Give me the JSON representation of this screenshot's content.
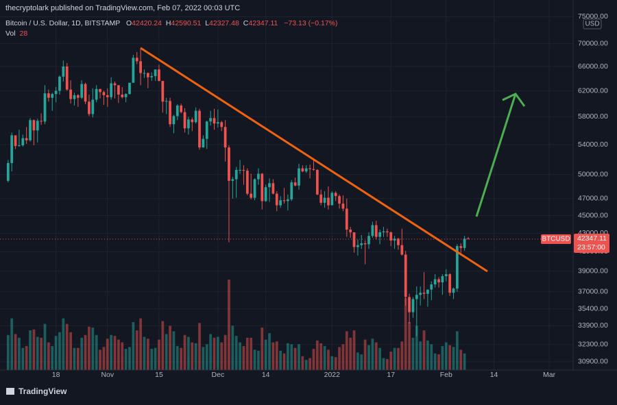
{
  "chart_data": {
    "type": "candlestick",
    "publisher": "thecryptolark published on TradingView.com, Feb 07, 2022 00:03 UTC",
    "symbol": "Bitcoin / U.S. Dollar, 1D, BITSTAMP",
    "o_label": "O",
    "h_label": "H",
    "l_label": "L",
    "c_label": "C",
    "change": "−73.13 (−0.17%)",
    "vol_label": "Vol",
    "currency": "USD",
    "price_label": "BTCUSD",
    "countdown": "23:57:00",
    "footer": "TradingView",
    "log_scale": true,
    "grid": true,
    "up_color": "#26a69a",
    "down_color": "#ef5350",
    "xlim": [
      -2.2,
      153.5
    ],
    "xticks": [
      {
        "value": 13,
        "label": "18"
      },
      {
        "value": 27,
        "label": "Nov"
      },
      {
        "value": 41,
        "label": "15"
      },
      {
        "value": 57,
        "label": "Dec"
      },
      {
        "value": 70,
        "label": "14"
      },
      {
        "value": 88,
        "label": "2022"
      },
      {
        "value": 104,
        "label": "17"
      },
      {
        "value": 119,
        "label": "Feb"
      },
      {
        "value": 132,
        "label": "14"
      },
      {
        "value": 147,
        "label": "Mar"
      }
    ],
    "ylim": [
      30250,
      78300
    ],
    "yticks": [
      {
        "value": 75000,
        "label": "75000.00"
      },
      {
        "value": 70000,
        "label": "70000.00"
      },
      {
        "value": 66000,
        "label": "66000.00"
      },
      {
        "value": 62000,
        "label": "62000.00"
      },
      {
        "value": 58000,
        "label": "58000.00"
      },
      {
        "value": 54000,
        "label": "54000.00"
      },
      {
        "value": 50000,
        "label": "50000.00"
      },
      {
        "value": 47000,
        "label": "47000.00"
      },
      {
        "value": 45000,
        "label": "45000.00"
      },
      {
        "value": 43000,
        "label": "43000.00"
      },
      {
        "value": 41000,
        "label": "41000.00"
      },
      {
        "value": 39000,
        "label": "39000.00"
      },
      {
        "value": 37000,
        "label": "37000.00"
      },
      {
        "value": 35400,
        "label": "35400.00"
      },
      {
        "value": 33900,
        "label": "33900.00"
      },
      {
        "value": 32300,
        "label": "32300.00"
      },
      {
        "value": 30900,
        "label": "30900.00"
      }
    ],
    "open": [
      49200,
      51500,
      55300,
      53800,
      53900,
      54900,
      54600,
      57500,
      56000,
      57400,
      57300,
      61600,
      60900,
      61500,
      62000,
      64300,
      66000,
      62200,
      60700,
      61300,
      60900,
      63100,
      60300,
      58400,
      60600,
      62300,
      61800,
      61300,
      61000,
      63200,
      62900,
      61400,
      61000,
      61500,
      63300,
      67500,
      66900,
      64900,
      64900,
      64200,
      64400,
      65500,
      63600,
      60300,
      60400,
      56900,
      58100,
      59700,
      58700,
      56300,
      57600,
      57200,
      58900,
      53600,
      54800,
      57300,
      57800,
      57000,
      57200,
      56500,
      53600,
      49200,
      49400,
      50600,
      50600,
      50500,
      47600,
      47100,
      49400,
      50100,
      46700,
      48400,
      48900,
      47600,
      46200,
      46800,
      46700,
      46900,
      49000,
      48600,
      50800,
      50400,
      50800,
      50700,
      50600,
      47500,
      46500,
      47100,
      46200,
      47700,
      47300,
      46400,
      45800,
      43400,
      43100,
      41500,
      41700,
      41900,
      41800,
      42700,
      43900,
      42600,
      43100,
      43200,
      43100,
      42200,
      42400,
      41700,
      40700,
      36500,
      35100,
      36300,
      36700,
      36900,
      36800,
      37200,
      37700,
      38200,
      37900,
      38500,
      38700,
      36900,
      37300,
      41600,
      41400,
      42420.24
    ],
    "high": [
      51900,
      55700,
      55300,
      56100,
      55400,
      56500,
      57800,
      57600,
      57700,
      58500,
      62900,
      62200,
      61700,
      62600,
      64500,
      67000,
      66600,
      63700,
      61700,
      61500,
      63700,
      63300,
      61400,
      62400,
      62900,
      62300,
      62000,
      62400,
      64200,
      63500,
      62900,
      62600,
      61600,
      63300,
      68000,
      68500,
      69000,
      65500,
      65000,
      65000,
      65500,
      66300,
      63600,
      60900,
      60900,
      58300,
      59900,
      60000,
      59300,
      58000,
      57900,
      59400,
      59200,
      55300,
      57400,
      58900,
      59200,
      59100,
      57400,
      57500,
      53900,
      49700,
      51000,
      51900,
      51200,
      50800,
      50100,
      49500,
      50800,
      50200,
      48700,
      49500,
      49400,
      47900,
      47300,
      48300,
      47500,
      49300,
      49600,
      51400,
      51200,
      51200,
      51300,
      52000,
      50700,
      48100,
      47900,
      48500,
      47900,
      47900,
      47500,
      47400,
      47000,
      43700,
      43100,
      42300,
      42800,
      42200,
      43100,
      44300,
      44400,
      43400,
      43700,
      43500,
      43200,
      42700,
      42500,
      43500,
      41100,
      36800,
      36500,
      37500,
      37500,
      38900,
      37200,
      38000,
      38700,
      38400,
      38700,
      39200,
      38800,
      37400,
      41800,
      41900,
      42700,
      42590.51
    ],
    "low": [
      49000,
      50400,
      53400,
      53700,
      53700,
      54100,
      54400,
      53900,
      54300,
      56800,
      56900,
      60300,
      58900,
      60200,
      61400,
      63500,
      62000,
      60000,
      59700,
      59500,
      60700,
      59900,
      58100,
      57900,
      60200,
      60800,
      59800,
      59500,
      60600,
      60800,
      60100,
      60800,
      60200,
      61400,
      63300,
      66400,
      62900,
      64100,
      62400,
      63600,
      63600,
      63500,
      58600,
      58400,
      56500,
      55600,
      57500,
      58500,
      55700,
      55400,
      55900,
      57000,
      53300,
      53600,
      53400,
      56700,
      56100,
      56400,
      55900,
      51700,
      42000,
      47000,
      47100,
      50100,
      48700,
      47400,
      46900,
      46800,
      48700,
      45700,
      46600,
      46600,
      47500,
      45500,
      45900,
      46400,
      45600,
      46700,
      48500,
      48100,
      50300,
      50200,
      49500,
      50500,
      47400,
      46200,
      45900,
      45700,
      46200,
      46700,
      45800,
      45500,
      42600,
      42500,
      40900,
      40600,
      41300,
      39700,
      41300,
      42500,
      42300,
      41800,
      42600,
      42600,
      41600,
      41300,
      41200,
      40600,
      35700,
      34100,
      34600,
      33000,
      35700,
      36300,
      35600,
      36200,
      37400,
      37400,
      36700,
      38000,
      36600,
      36300,
      37000,
      40900,
      41100,
      42327.48
    ],
    "close": [
      51500,
      55300,
      53800,
      53900,
      54900,
      54600,
      57500,
      56000,
      57400,
      57300,
      61600,
      60900,
      61500,
      62000,
      64300,
      66000,
      62200,
      60700,
      61300,
      60900,
      63100,
      60300,
      58400,
      60600,
      62300,
      61800,
      61300,
      61000,
      63200,
      62900,
      61400,
      61000,
      61500,
      63300,
      67500,
      66900,
      64900,
      64900,
      64200,
      64400,
      65500,
      63600,
      60300,
      60400,
      56900,
      58100,
      59700,
      58700,
      56300,
      57600,
      57200,
      58900,
      53600,
      54800,
      57300,
      57800,
      57000,
      57200,
      56500,
      53600,
      49200,
      49400,
      50600,
      50600,
      50500,
      47600,
      47100,
      49400,
      50100,
      46700,
      48400,
      48900,
      47600,
      46200,
      46800,
      46700,
      46900,
      49000,
      48600,
      50800,
      50400,
      50800,
      50700,
      50600,
      47500,
      46500,
      47100,
      46200,
      47700,
      47300,
      46400,
      45800,
      43400,
      43100,
      41500,
      41700,
      41900,
      41800,
      42700,
      43900,
      42600,
      43100,
      43200,
      43100,
      42200,
      42400,
      41700,
      40700,
      36500,
      35100,
      36300,
      36700,
      36900,
      36800,
      37200,
      37700,
      38200,
      37900,
      38500,
      38700,
      36900,
      37300,
      41600,
      41400,
      42400,
      42347.11
    ],
    "volume": [
      3800,
      5600,
      3900,
      3500,
      2400,
      2600,
      4300,
      4400,
      3600,
      3500,
      5000,
      3000,
      2600,
      3700,
      4100,
      5600,
      5000,
      4100,
      2400,
      2400,
      3500,
      3800,
      4700,
      4600,
      3800,
      2200,
      2500,
      3400,
      3800,
      3700,
      3300,
      3000,
      2300,
      2500,
      5200,
      4300,
      5600,
      3600,
      3400,
      2300,
      2400,
      3300,
      5300,
      3900,
      4800,
      4200,
      2600,
      2400,
      3800,
      3600,
      3000,
      2900,
      5100,
      2500,
      2800,
      3900,
      3500,
      3600,
      3000,
      3800,
      9800,
      4800,
      3700,
      3000,
      2600,
      3500,
      3500,
      2200,
      2100,
      4600,
      3300,
      4000,
      3000,
      3100,
      2100,
      1800,
      2900,
      2800,
      2400,
      2800,
      1500,
      1100,
      1300,
      2300,
      3200,
      2900,
      2600,
      2200,
      1500,
      1400,
      2500,
      2800,
      4200,
      3500,
      4300,
      1900,
      1700,
      3300,
      2700,
      3400,
      3000,
      2400,
      1300,
      1200,
      2000,
      2400,
      2400,
      3100,
      7800,
      5200,
      3500,
      4800,
      3100,
      4300,
      3200,
      2800,
      1800,
      1700,
      2600,
      3000,
      2700,
      2500,
      4200,
      2200,
      1800,
      28
    ]
  }
}
